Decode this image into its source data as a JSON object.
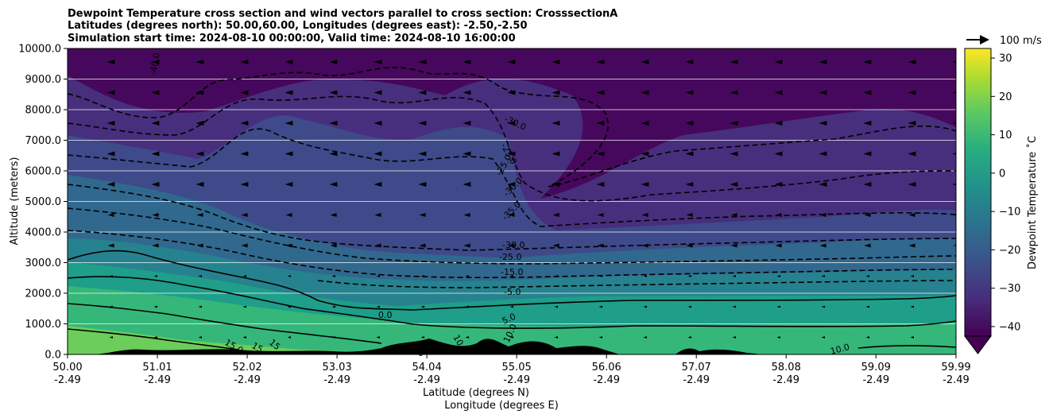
{
  "figure": {
    "title_lines": [
      "Dewpoint Temperature cross section and wind vectors parallel to cross section: CrosssectionA",
      "Latitudes (degrees north): 50.00,60.00, Longitudes (degrees east): -2.50,-2.50",
      "Simulation start time: 2024-08-10 00:00:00, Valid time: 2024-08-10 16:00:00"
    ],
    "quiver_key_label": "100 m/s"
  },
  "chart_data": {
    "type": "contour",
    "xlabel": "Latitude (degrees N)",
    "xlabel2": "Longitude (degrees E)",
    "ylabel": "Altitude (meters)",
    "ylim": [
      0,
      10000
    ],
    "y_ticks": [
      "0.0",
      "1000.0",
      "2000.0",
      "3000.0",
      "4000.0",
      "5000.0",
      "6000.0",
      "7000.0",
      "8000.0",
      "9000.0",
      "10000.0"
    ],
    "x_ticks": [
      {
        "lat": "50.00",
        "lon": "-2.49"
      },
      {
        "lat": "51.01",
        "lon": "-2.49"
      },
      {
        "lat": "52.02",
        "lon": "-2.49"
      },
      {
        "lat": "53.03",
        "lon": "-2.49"
      },
      {
        "lat": "54.04",
        "lon": "-2.49"
      },
      {
        "lat": "55.05",
        "lon": "-2.49"
      },
      {
        "lat": "56.06",
        "lon": "-2.49"
      },
      {
        "lat": "57.07",
        "lon": "-2.49"
      },
      {
        "lat": "58.08",
        "lon": "-2.49"
      },
      {
        "lat": "59.09",
        "lon": "-2.49"
      },
      {
        "lat": "59.99",
        "lon": "-2.49"
      }
    ],
    "xlim": [
      50.0,
      59.99
    ],
    "grid": "horizontal",
    "colorbar": {
      "label": "Dewpoint Temperature ˚C",
      "range": [
        -42.5,
        32.5
      ],
      "ticks": [
        "30",
        "20",
        "10",
        "0",
        "−10",
        "−20",
        "−30",
        "−40"
      ],
      "extend": "min",
      "colormap": "viridis"
    },
    "contour_levels_dashed": [
      -40,
      -35,
      -30,
      -25,
      -20,
      -15,
      -10,
      -5
    ],
    "contour_levels_solid": [
      0,
      5,
      10,
      15
    ],
    "contour_labels": [
      "-40.0",
      "-30.0",
      "-25.0",
      "-25.0",
      "-30.0",
      "-35.0",
      "-30.0",
      "-25.0",
      "-15.0",
      "-5.0",
      "0.0",
      "5.0",
      "10.0",
      "10.0",
      "10.0",
      "15.0",
      "15",
      "15",
      "10.0"
    ],
    "wind_vectors": "mostly westward (toward decreasing latitude) aloft, weak near surface"
  }
}
